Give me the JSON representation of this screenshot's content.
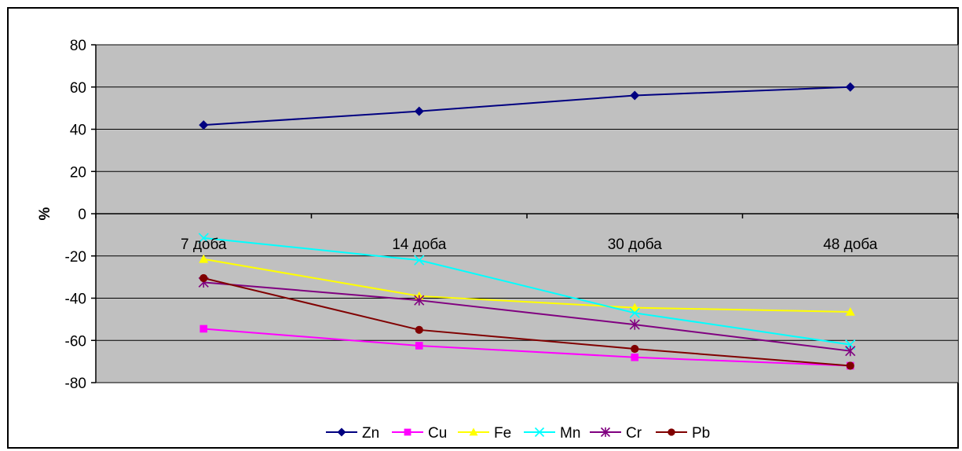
{
  "chart_data": {
    "type": "line",
    "title": "",
    "xlabel": "",
    "ylabel": "%",
    "categories": [
      "7 доба",
      "14 доба",
      "30 доба",
      "48 доба"
    ],
    "ylim": [
      -80,
      80
    ],
    "yticks": [
      80,
      60,
      40,
      20,
      0,
      -20,
      -40,
      -60,
      -80
    ],
    "grid": true,
    "legend_position": "bottom",
    "plot_background": "#c0c0c0",
    "series": [
      {
        "name": "Zn",
        "values": [
          42,
          48.5,
          56,
          60
        ],
        "color": "#000080",
        "marker": "diamond"
      },
      {
        "name": "Cu",
        "values": [
          -54.5,
          -62.5,
          -68,
          -72
        ],
        "color": "#ff00ff",
        "marker": "square"
      },
      {
        "name": "Fe",
        "values": [
          -21.5,
          -39,
          -44.5,
          -46.5
        ],
        "color": "#ffff00",
        "marker": "triangle"
      },
      {
        "name": "Mn",
        "values": [
          -11.5,
          -22,
          -47,
          -62
        ],
        "color": "#00ffff",
        "marker": "x"
      },
      {
        "name": "Cr",
        "values": [
          -32.5,
          -41,
          -52.5,
          -65
        ],
        "color": "#800080",
        "marker": "star"
      },
      {
        "name": "Pb",
        "values": [
          -30.5,
          -55,
          -64,
          -72
        ],
        "color": "#800000",
        "marker": "circle"
      }
    ]
  }
}
